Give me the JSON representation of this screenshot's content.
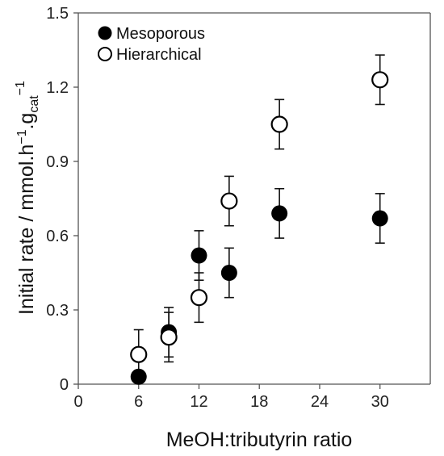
{
  "chart_data": {
    "type": "scatter",
    "title": "",
    "xlabel": "MeOH:tributyrin ratio",
    "ylabel": {
      "main": "Initial rate / mmol.h",
      "sup1": "−1",
      "mid": ".g",
      "sub": "cat",
      "sup2": "−1"
    },
    "xlim": [
      0,
      35
    ],
    "ylim": [
      0,
      1.5
    ],
    "x_ticks": [
      0,
      6,
      12,
      18,
      24,
      30
    ],
    "y_ticks": [
      0,
      0.3,
      0.6,
      0.9,
      1.2,
      1.5
    ],
    "x_tick_labels": [
      "0",
      "6",
      "12",
      "18",
      "24",
      "30"
    ],
    "y_tick_labels": [
      "0",
      "0.3",
      "0.6",
      "0.9",
      "1.2",
      "1.5"
    ],
    "grid": false,
    "legend_position": "top-left",
    "series": [
      {
        "name": "Mesoporous",
        "marker": "filled-circle",
        "color": "#000000",
        "points": [
          {
            "x": 6,
            "y": 0.03,
            "err": 0.0
          },
          {
            "x": 9,
            "y": 0.21,
            "err": 0.1
          },
          {
            "x": 12,
            "y": 0.52,
            "err": 0.1
          },
          {
            "x": 15,
            "y": 0.45,
            "err": 0.1
          },
          {
            "x": 20,
            "y": 0.69,
            "err": 0.1
          },
          {
            "x": 30,
            "y": 0.67,
            "err": 0.1
          }
        ]
      },
      {
        "name": "Hierarchical",
        "marker": "open-circle",
        "color": "#000000",
        "points": [
          {
            "x": 6,
            "y": 0.12,
            "err": 0.1
          },
          {
            "x": 9,
            "y": 0.19,
            "err": 0.1
          },
          {
            "x": 12,
            "y": 0.35,
            "err": 0.1
          },
          {
            "x": 15,
            "y": 0.74,
            "err": 0.1
          },
          {
            "x": 20,
            "y": 1.05,
            "err": 0.1
          },
          {
            "x": 30,
            "y": 1.23,
            "err": 0.1
          }
        ]
      }
    ]
  }
}
